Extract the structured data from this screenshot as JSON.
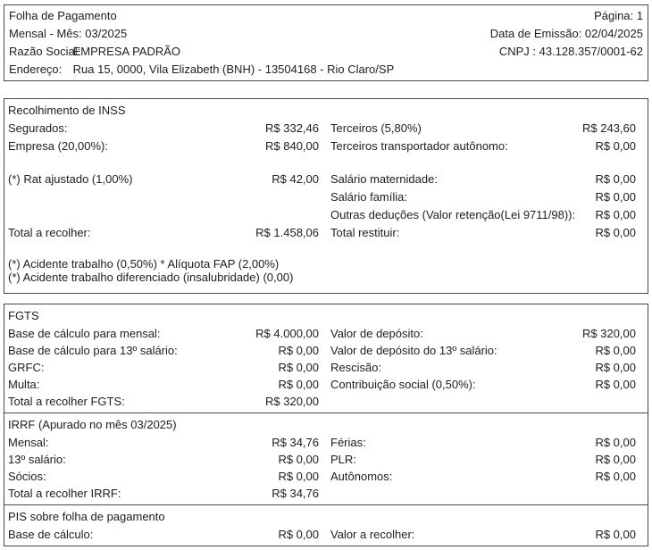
{
  "header": {
    "title": "Folha de Pagamento",
    "page_number": "Página: 1",
    "period": "Mensal - Mês: 03/2025",
    "emission_date": "Data de Emissão: 02/04/2025",
    "company_label": "Razão Social:",
    "company_name": "EMPRESA PADRÃO",
    "cnpj": "CNPJ : 43.128.357/0001-62",
    "address_label": "Endereço:",
    "address_value": "Rua 15, 0000, Vila Elizabeth (BNH) - 13504168 - Rio Claro/SP"
  },
  "inss": {
    "title": "Recolhimento de INSS",
    "rows": [
      {
        "ll": "Segurados:",
        "lv": "R$ 332,46",
        "rl": "Terceiros (5,80%)",
        "rv": "R$ 243,60"
      },
      {
        "ll": "Empresa (20,00%):",
        "lv": "R$ 840,00",
        "rl": "Terceiros transportador autônomo:",
        "rv": "R$ 0,00"
      },
      {
        "type": "spacer"
      },
      {
        "ll": "(*) Rat ajustado (1,00%)",
        "lv": "R$ 42,00",
        "rl": "Salário maternidade:",
        "rv": "R$ 0,00"
      },
      {
        "rl": "Salário família:",
        "rv": "R$ 0,00"
      },
      {
        "rl": "Outras deduções (Valor retenção(Lei 9711/98)):",
        "rv": "R$ 0,00"
      },
      {
        "ll": "Total a recolher:",
        "lv": "R$ 1.458,06",
        "rl": "Total restituir:",
        "rv": "R$ 0,00"
      },
      {
        "type": "spacer"
      },
      {
        "type": "note",
        "ll": "(*) Acidente trabalho (0,50%) * Alíquota FAP (2,00%)"
      },
      {
        "type": "note",
        "ll": "(*) Acidente trabalho diferenciado (insalubridade) (0,00)"
      }
    ]
  },
  "fgts": {
    "title": "FGTS",
    "rows": [
      {
        "ll": "Base de cálculo para mensal:",
        "lv": "R$ 4.000,00",
        "rl": "Valor de depósito:",
        "rv": "R$ 320,00"
      },
      {
        "ll": "Base de cálculo para 13º salário:",
        "lv": "R$ 0,00",
        "rl": "Valor de depósito do 13º salário:",
        "rv": "R$ 0,00"
      },
      {
        "ll": "GRFC:",
        "lv": "R$ 0,00",
        "rl": "Rescisão:",
        "rv": "R$ 0,00"
      },
      {
        "ll": "Multa:",
        "lv": "R$ 0,00",
        "rl": "Contribuição social (0,50%):",
        "rv": "R$ 0,00"
      },
      {
        "ll": "Total a recolher FGTS:",
        "lv": "R$ 320,00"
      }
    ]
  },
  "irrf": {
    "title": "IRRF (Apurado no mês 03/2025)",
    "rows": [
      {
        "ll": "Mensal:",
        "lv": "R$ 34,76",
        "rl": "Férias:",
        "rv": "R$ 0,00"
      },
      {
        "ll": "13º salário:",
        "lv": "R$ 0,00",
        "rl": "PLR:",
        "rv": "R$ 0,00"
      },
      {
        "ll": "Sócios:",
        "lv": "R$ 0,00",
        "rl": "Autônomos:",
        "rv": "R$ 0,00"
      },
      {
        "ll": "Total a recolher IRRF:",
        "lv": "R$ 34,76"
      }
    ]
  },
  "pis": {
    "title": "PIS sobre folha de pagamento",
    "rows": [
      {
        "ll": "Base de cálculo:",
        "lv": "R$ 0,00",
        "rl": "Valor a recolher:",
        "rv": "R$ 0,00"
      }
    ]
  }
}
